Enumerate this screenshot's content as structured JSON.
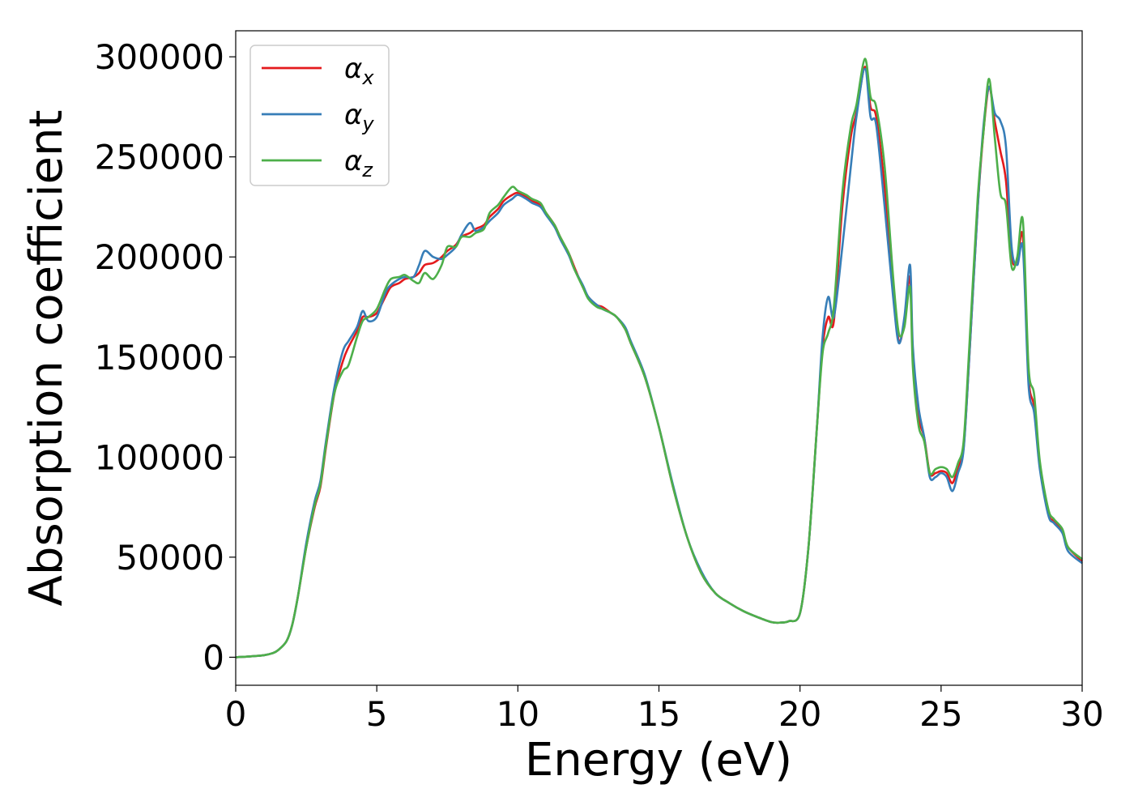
{
  "chart_data": {
    "type": "line",
    "title": "",
    "xlabel": "Energy (eV)",
    "ylabel": "Absorption coefficient",
    "xlim": [
      0,
      30
    ],
    "ylim": [
      -14000,
      313000
    ],
    "xticks": [
      0,
      5,
      10,
      15,
      20,
      25,
      30
    ],
    "xtick_labels": [
      "0",
      "5",
      "10",
      "15",
      "20",
      "25",
      "30"
    ],
    "yticks": [
      0,
      50000,
      100000,
      150000,
      200000,
      250000,
      300000
    ],
    "ytick_labels": [
      "0",
      "50000",
      "100000",
      "150000",
      "200000",
      "250000",
      "300000"
    ],
    "grid": false,
    "legend_position": "top-left",
    "series": [
      {
        "name": "αx",
        "symbol": "α",
        "subscript": "x",
        "color": "#e41a1c",
        "x": [
          0,
          0.5,
          1,
          1.3,
          1.5,
          1.8,
          2,
          2.2,
          2.5,
          2.8,
          3,
          3.2,
          3.5,
          3.8,
          4,
          4.3,
          4.5,
          4.7,
          5,
          5.3,
          5.5,
          5.8,
          6,
          6.3,
          6.5,
          6.7,
          7,
          7.3,
          7.5,
          7.8,
          8,
          8.3,
          8.5,
          8.8,
          9,
          9.3,
          9.5,
          9.8,
          10,
          10.3,
          10.5,
          10.8,
          11,
          11.3,
          11.5,
          11.8,
          12,
          12.3,
          12.5,
          12.8,
          13,
          13.3,
          13.5,
          13.8,
          14,
          14.5,
          15,
          15.5,
          16,
          16.5,
          17,
          17.5,
          18,
          18.5,
          19,
          19.3,
          19.6,
          20,
          20.3,
          20.6,
          20.8,
          21,
          21.2,
          21.5,
          21.8,
          22,
          22.3,
          22.5,
          22.7,
          23,
          23.3,
          23.5,
          23.7,
          23.9,
          24,
          24.2,
          24.4,
          24.6,
          24.8,
          25,
          25.2,
          25.4,
          25.6,
          25.8,
          26,
          26.3,
          26.5,
          26.7,
          26.9,
          27.1,
          27.3,
          27.5,
          27.7,
          27.9,
          28.1,
          28.3,
          28.5,
          28.8,
          29,
          29.3,
          29.5,
          30
        ],
        "y": [
          0,
          400,
          1000,
          2000,
          3500,
          8000,
          16000,
          30000,
          55000,
          75000,
          85000,
          105000,
          132000,
          148000,
          155000,
          163000,
          170000,
          170000,
          172000,
          180000,
          185000,
          187000,
          189000,
          190000,
          192000,
          196000,
          197000,
          200000,
          203000,
          206000,
          210000,
          212000,
          214000,
          216000,
          220000,
          224000,
          228000,
          231000,
          232000,
          230000,
          228000,
          226000,
          222000,
          216000,
          210000,
          202000,
          195000,
          185000,
          180000,
          176000,
          175000,
          172000,
          170000,
          164000,
          157000,
          140000,
          115000,
          85000,
          60000,
          42000,
          32000,
          27000,
          23000,
          20000,
          17500,
          17300,
          18000,
          22000,
          55000,
          115000,
          155000,
          170000,
          168000,
          225000,
          260000,
          272000,
          295000,
          275000,
          270000,
          235000,
          185000,
          158000,
          168000,
          190000,
          150000,
          120000,
          110000,
          92000,
          92000,
          93000,
          92000,
          87000,
          95000,
          105000,
          150000,
          225000,
          262000,
          285000,
          268000,
          253000,
          238000,
          200000,
          198000,
          210000,
          140000,
          125000,
          96000,
          72000,
          68000,
          63000,
          55000,
          48000
        ]
      },
      {
        "name": "αy",
        "symbol": "α",
        "subscript": "y",
        "color": "#377eb8",
        "x": [
          0,
          0.5,
          1,
          1.3,
          1.5,
          1.8,
          2,
          2.2,
          2.5,
          2.8,
          3,
          3.2,
          3.5,
          3.8,
          4,
          4.3,
          4.5,
          4.7,
          5,
          5.3,
          5.5,
          5.8,
          6,
          6.3,
          6.5,
          6.7,
          7,
          7.3,
          7.5,
          7.8,
          8,
          8.3,
          8.5,
          8.8,
          9,
          9.3,
          9.5,
          9.8,
          10,
          10.3,
          10.5,
          10.8,
          11,
          11.3,
          11.5,
          11.8,
          12,
          12.3,
          12.5,
          12.8,
          13,
          13.3,
          13.5,
          13.8,
          14,
          14.5,
          15,
          15.5,
          16,
          16.5,
          17,
          17.5,
          18,
          18.5,
          19,
          19.3,
          19.6,
          20,
          20.3,
          20.6,
          20.8,
          21,
          21.2,
          21.5,
          21.8,
          22,
          22.3,
          22.5,
          22.7,
          23,
          23.3,
          23.5,
          23.7,
          23.9,
          24,
          24.2,
          24.4,
          24.6,
          24.8,
          25,
          25.2,
          25.4,
          25.6,
          25.8,
          26,
          26.3,
          26.5,
          26.7,
          26.9,
          27.1,
          27.3,
          27.5,
          27.7,
          27.9,
          28.1,
          28.3,
          28.5,
          28.8,
          29,
          29.3,
          29.5,
          30
        ],
        "y": [
          0,
          400,
          1000,
          2000,
          3500,
          8000,
          16000,
          30000,
          57000,
          78000,
          88000,
          108000,
          135000,
          153000,
          158000,
          165000,
          173000,
          168000,
          170000,
          182000,
          186000,
          189000,
          190000,
          190000,
          196000,
          203000,
          200000,
          199000,
          201000,
          205000,
          211000,
          217000,
          213000,
          215000,
          218000,
          222000,
          226000,
          229000,
          231000,
          229000,
          227000,
          225000,
          221000,
          215000,
          209000,
          201000,
          194000,
          186000,
          180000,
          176000,
          174000,
          172000,
          170000,
          165000,
          158000,
          141000,
          115000,
          86000,
          60000,
          43000,
          32000,
          27000,
          23000,
          20000,
          17500,
          17300,
          18000,
          22000,
          55000,
          115000,
          160000,
          180000,
          170000,
          205000,
          245000,
          270000,
          294000,
          270000,
          266000,
          225000,
          180000,
          157000,
          170000,
          196000,
          155000,
          125000,
          110000,
          90000,
          90000,
          92000,
          90000,
          83000,
          92000,
          104000,
          150000,
          225000,
          265000,
          285000,
          272000,
          268000,
          255000,
          205000,
          196000,
          204000,
          136000,
          122000,
          94000,
          71000,
          67000,
          62000,
          53000,
          47000
        ]
      },
      {
        "name": "αz",
        "symbol": "α",
        "subscript": "z",
        "color": "#4daf4a",
        "x": [
          0,
          0.5,
          1,
          1.3,
          1.5,
          1.8,
          2,
          2.2,
          2.5,
          2.8,
          3,
          3.2,
          3.5,
          3.8,
          4,
          4.3,
          4.5,
          4.7,
          5,
          5.3,
          5.5,
          5.8,
          6,
          6.3,
          6.5,
          6.7,
          7,
          7.3,
          7.5,
          7.8,
          8,
          8.3,
          8.5,
          8.8,
          9,
          9.3,
          9.5,
          9.8,
          10,
          10.3,
          10.5,
          10.8,
          11,
          11.3,
          11.5,
          11.8,
          12,
          12.3,
          12.5,
          12.8,
          13,
          13.3,
          13.5,
          13.8,
          14,
          14.5,
          15,
          15.5,
          16,
          16.5,
          17,
          17.5,
          18,
          18.5,
          19,
          19.3,
          19.6,
          20,
          20.3,
          20.6,
          20.8,
          21,
          21.2,
          21.5,
          21.8,
          22,
          22.3,
          22.5,
          22.7,
          23,
          23.3,
          23.5,
          23.7,
          23.9,
          24,
          24.2,
          24.4,
          24.6,
          24.8,
          25,
          25.2,
          25.4,
          25.6,
          25.8,
          26,
          26.3,
          26.5,
          26.7,
          26.9,
          27.1,
          27.3,
          27.5,
          27.7,
          27.9,
          28.1,
          28.3,
          28.5,
          28.8,
          29,
          29.3,
          29.5,
          30
        ],
        "y": [
          0,
          400,
          1000,
          2000,
          3500,
          8000,
          16000,
          30000,
          55000,
          76000,
          86000,
          106000,
          132000,
          143000,
          146000,
          160000,
          168000,
          170000,
          174000,
          184000,
          189000,
          190000,
          191000,
          188000,
          187000,
          192000,
          189000,
          196000,
          205000,
          205000,
          210000,
          210000,
          212000,
          214000,
          222000,
          226000,
          230000,
          235000,
          233000,
          231000,
          229000,
          227000,
          222000,
          216000,
          210000,
          202000,
          194000,
          185000,
          179000,
          175000,
          174000,
          172000,
          170000,
          164000,
          157000,
          140000,
          115000,
          85000,
          60000,
          42000,
          32000,
          27000,
          23000,
          20000,
          17500,
          17300,
          18000,
          22000,
          55000,
          115000,
          152000,
          162000,
          175000,
          232000,
          265000,
          276000,
          299000,
          280000,
          275000,
          245000,
          190000,
          162000,
          165000,
          185000,
          145000,
          116000,
          108000,
          92000,
          94000,
          95000,
          94000,
          90000,
          97000,
          108000,
          155000,
          230000,
          262000,
          289000,
          260000,
          232000,
          226000,
          195000,
          200000,
          218000,
          145000,
          131000,
          98000,
          74000,
          69000,
          64000,
          55000,
          49000
        ]
      }
    ]
  }
}
